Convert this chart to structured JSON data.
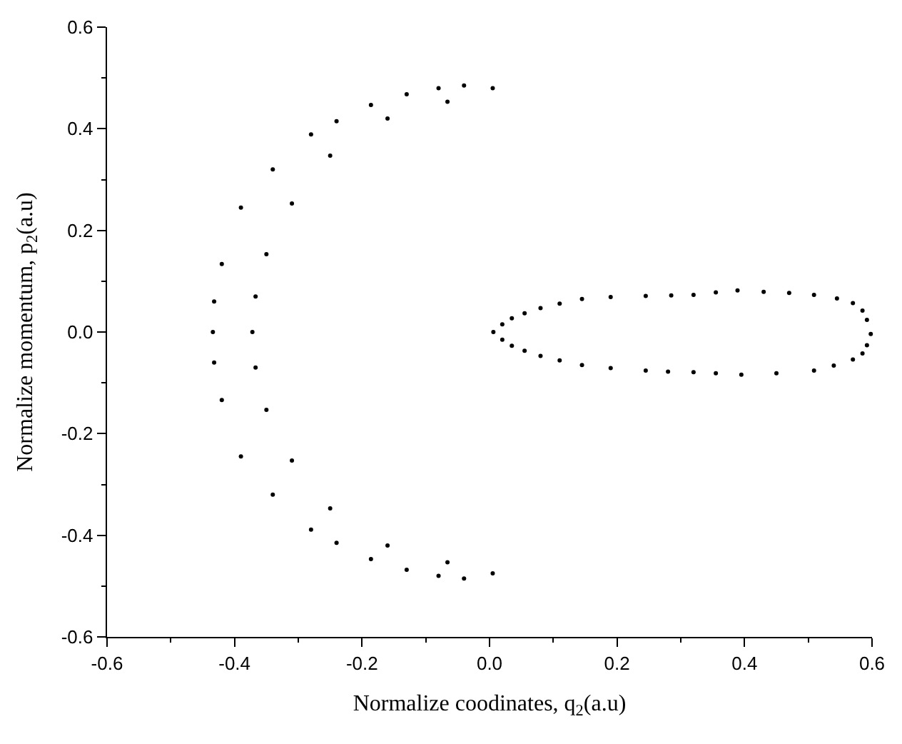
{
  "chart_data": {
    "type": "scatter",
    "xlabel": "Normalize coodinates, q$_{2}$(a.u)",
    "ylabel": "Normalize momentum, p$_{2}$(a.u)",
    "xlim": [
      -0.6,
      0.6
    ],
    "xticks": [
      {
        "value": -0.6,
        "label": "-0.6"
      },
      {
        "value": -0.4,
        "label": "-0.4"
      },
      {
        "value": -0.2,
        "label": "-0.2"
      },
      {
        "value": 0,
        "label": "0.0"
      },
      {
        "value": 0.2,
        "label": "0.2"
      },
      {
        "value": 0.4,
        "label": "0.4"
      },
      {
        "value": 0.6,
        "label": "0.6"
      }
    ],
    "ylim": [
      -0.6,
      0.6
    ],
    "yticks": [
      {
        "value": -0.6,
        "label": "-0.6"
      },
      {
        "value": -0.4,
        "label": "-0.4"
      },
      {
        "value": -0.2,
        "label": "-0.2"
      },
      {
        "value": 0,
        "label": "0.0"
      },
      {
        "value": 0.2,
        "label": "0.2"
      },
      {
        "value": 0.4,
        "label": "0.4"
      },
      {
        "value": 0.6,
        "label": "0.6"
      }
    ],
    "grid": false,
    "legend": false,
    "series": [
      {
        "color": "#000000",
        "x": [
          0.005,
          -0.04,
          -0.08,
          -0.13,
          -0.186,
          -0.24,
          -0.28,
          -0.34,
          -0.39,
          -0.42,
          -0.432,
          -0.434,
          -0.432,
          -0.42,
          -0.39,
          -0.34,
          -0.28,
          -0.24,
          -0.186,
          -0.13,
          -0.08,
          -0.04,
          0.005,
          -0.066,
          -0.16,
          -0.25,
          -0.31,
          -0.35,
          -0.367,
          -0.372,
          -0.367,
          -0.35,
          -0.31,
          -0.25,
          -0.16,
          -0.066
        ],
        "values": [
          0.48,
          0.485,
          0.48,
          0.468,
          0.447,
          0.415,
          0.389,
          0.32,
          0.245,
          0.134,
          0.06,
          0.0,
          -0.06,
          -0.134,
          -0.245,
          -0.32,
          -0.389,
          -0.415,
          -0.447,
          -0.468,
          -0.48,
          -0.485,
          -0.475,
          -0.453,
          -0.42,
          -0.347,
          -0.253,
          -0.153,
          -0.07,
          0.0,
          0.07,
          0.153,
          0.253,
          0.347,
          0.42,
          0.453
        ]
      },
      {
        "color": "#000000",
        "x": [
          0.006,
          0.02,
          0.035,
          0.055,
          0.08,
          0.11,
          0.145,
          0.19,
          0.245,
          0.285,
          0.32,
          0.355,
          0.389,
          0.43,
          0.47,
          0.509,
          0.545,
          0.57,
          0.585,
          0.592,
          0.598,
          0.592,
          0.585,
          0.57,
          0.54,
          0.509,
          0.45,
          0.395,
          0.355,
          0.32,
          0.28,
          0.245,
          0.19,
          0.145,
          0.11,
          0.08,
          0.055,
          0.035,
          0.02
        ],
        "values": [
          0.0,
          0.015,
          0.027,
          0.037,
          0.047,
          0.056,
          0.065,
          0.069,
          0.071,
          0.072,
          0.073,
          0.078,
          0.082,
          0.079,
          0.077,
          0.073,
          0.066,
          0.057,
          0.042,
          0.024,
          -0.004,
          -0.026,
          -0.042,
          -0.054,
          -0.066,
          -0.076,
          -0.081,
          -0.084,
          -0.081,
          -0.079,
          -0.078,
          -0.076,
          -0.071,
          -0.065,
          -0.056,
          -0.047,
          -0.037,
          -0.027,
          -0.015
        ]
      }
    ]
  }
}
